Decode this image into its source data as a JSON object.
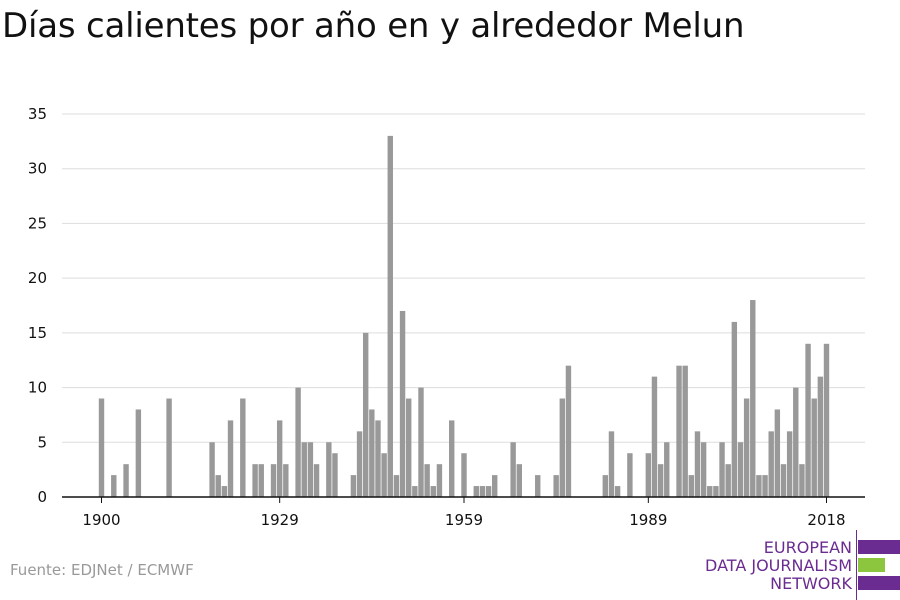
{
  "title": "Días calientes por año en y alrededor Melun",
  "source": "Fuente: EDJNet / ECMWF",
  "logo": {
    "line1": "EUROPEAN",
    "line2": "DATA JOURNALISM",
    "line3": "NETWORK",
    "colors": {
      "purple": "#6b2c91",
      "green": "#8cc63f"
    }
  },
  "colors": {
    "bar": "#999999",
    "grid": "#dddddd",
    "axis": "#111111",
    "text": "#111111"
  },
  "chart_data": {
    "type": "bar",
    "title": "Días calientes por año en y alrededor Melun",
    "xlabel": "",
    "ylabel": "",
    "ylim": [
      0,
      35
    ],
    "xlim": [
      1900,
      2018
    ],
    "yticks": [
      0,
      5,
      10,
      15,
      20,
      25,
      30,
      35
    ],
    "xticks": [
      1900,
      1929,
      1959,
      1989,
      2018
    ],
    "grid": true,
    "legend": "none",
    "x": [
      1900,
      1901,
      1902,
      1903,
      1904,
      1905,
      1906,
      1907,
      1908,
      1909,
      1910,
      1911,
      1912,
      1913,
      1914,
      1915,
      1916,
      1917,
      1918,
      1919,
      1920,
      1921,
      1922,
      1923,
      1924,
      1925,
      1926,
      1927,
      1928,
      1929,
      1930,
      1931,
      1932,
      1933,
      1934,
      1935,
      1936,
      1937,
      1938,
      1939,
      1940,
      1941,
      1942,
      1943,
      1944,
      1945,
      1946,
      1947,
      1948,
      1949,
      1950,
      1951,
      1952,
      1953,
      1954,
      1955,
      1956,
      1957,
      1958,
      1959,
      1960,
      1961,
      1962,
      1963,
      1964,
      1965,
      1966,
      1967,
      1968,
      1969,
      1970,
      1971,
      1972,
      1973,
      1974,
      1975,
      1976,
      1977,
      1978,
      1979,
      1980,
      1981,
      1982,
      1983,
      1984,
      1985,
      1986,
      1987,
      1988,
      1989,
      1990,
      1991,
      1992,
      1993,
      1994,
      1995,
      1996,
      1997,
      1998,
      1999,
      2000,
      2001,
      2002,
      2003,
      2004,
      2005,
      2006,
      2007,
      2008,
      2009,
      2010,
      2011,
      2012,
      2013,
      2014,
      2015,
      2016,
      2017,
      2018
    ],
    "values": [
      9,
      0,
      2,
      0,
      3,
      0,
      8,
      0,
      0,
      0,
      0,
      9,
      0,
      0,
      0,
      0,
      0,
      0,
      5,
      2,
      1,
      7,
      0,
      9,
      0,
      3,
      3,
      0,
      3,
      7,
      3,
      0,
      10,
      5,
      5,
      3,
      0,
      5,
      4,
      0,
      0,
      2,
      6,
      15,
      8,
      7,
      4,
      33,
      2,
      17,
      9,
      1,
      10,
      3,
      1,
      3,
      0,
      7,
      0,
      4,
      0,
      1,
      1,
      1,
      2,
      0,
      0,
      5,
      3,
      0,
      0,
      2,
      0,
      0,
      2,
      9,
      12,
      0,
      0,
      0,
      0,
      0,
      2,
      6,
      1,
      0,
      4,
      0,
      0,
      4,
      11,
      3,
      5,
      0,
      12,
      12,
      2,
      6,
      5,
      1,
      1,
      5,
      3,
      16,
      5,
      9,
      18,
      2,
      2,
      6,
      8,
      3,
      6,
      10,
      3,
      14,
      9,
      11,
      14
    ]
  }
}
